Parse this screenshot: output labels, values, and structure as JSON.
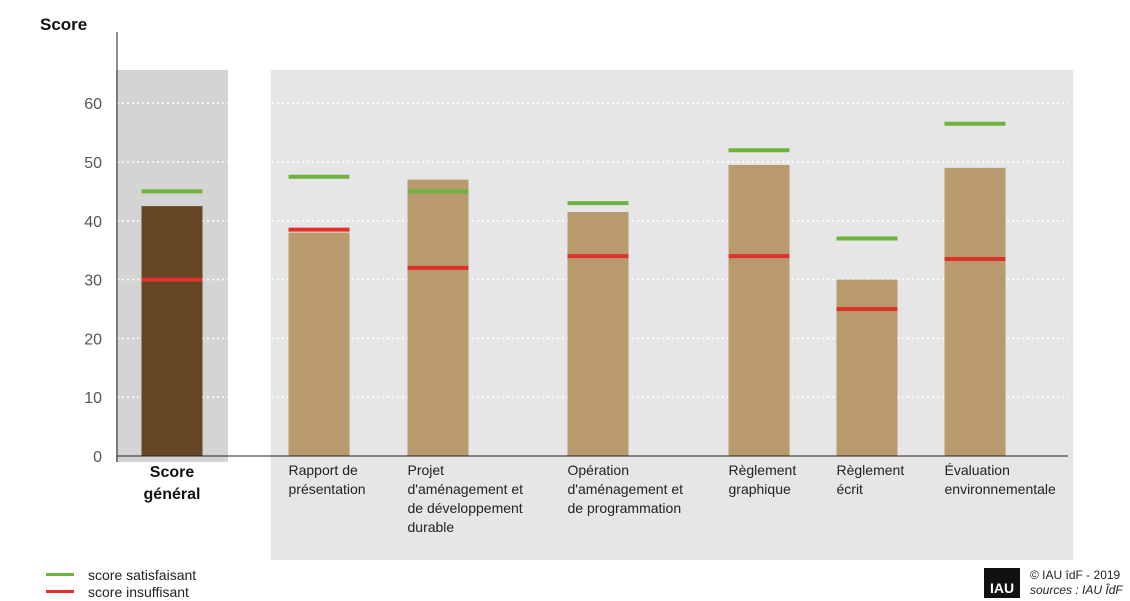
{
  "chart_data": {
    "type": "bar",
    "ylabel": "Score",
    "ylim": [
      0,
      65
    ],
    "yticks": [
      0,
      10,
      20,
      30,
      40,
      50,
      60
    ],
    "grid": true,
    "categories": [
      [
        "Score",
        "général"
      ],
      [
        "Rapport de",
        "présentation"
      ],
      [
        "Projet",
        "d'aménagement et",
        "de développement",
        "durable"
      ],
      [
        "Opération",
        "d'aménagement et",
        "de programmation"
      ],
      [
        "Règlement",
        "graphique"
      ],
      [
        "Règlement",
        "écrit"
      ],
      [
        "Évaluation",
        "environnementale"
      ]
    ],
    "values": [
      42.5,
      38,
      47,
      41.5,
      49.5,
      30,
      49
    ],
    "series": [
      {
        "name": "score satisfaisant",
        "values": [
          45,
          47.5,
          45,
          43,
          52,
          37,
          56.5
        ]
      },
      {
        "name": "score insuffisant",
        "values": [
          30,
          38.5,
          32,
          34,
          34,
          25,
          33.5
        ]
      }
    ],
    "colors": {
      "bar_main": "#654624",
      "bar": "#b89a6e",
      "satisfaisant": "#6db33f",
      "insuffisant": "#e0302a",
      "panel_main": "#d4d4d4",
      "panel": "#e6e6e6"
    },
    "legend_position": "bottom-left"
  },
  "credit": {
    "logo": "IAU",
    "copyright": "© IAU îdF  - 2019",
    "sources": "sources : IAU ÎdF"
  }
}
